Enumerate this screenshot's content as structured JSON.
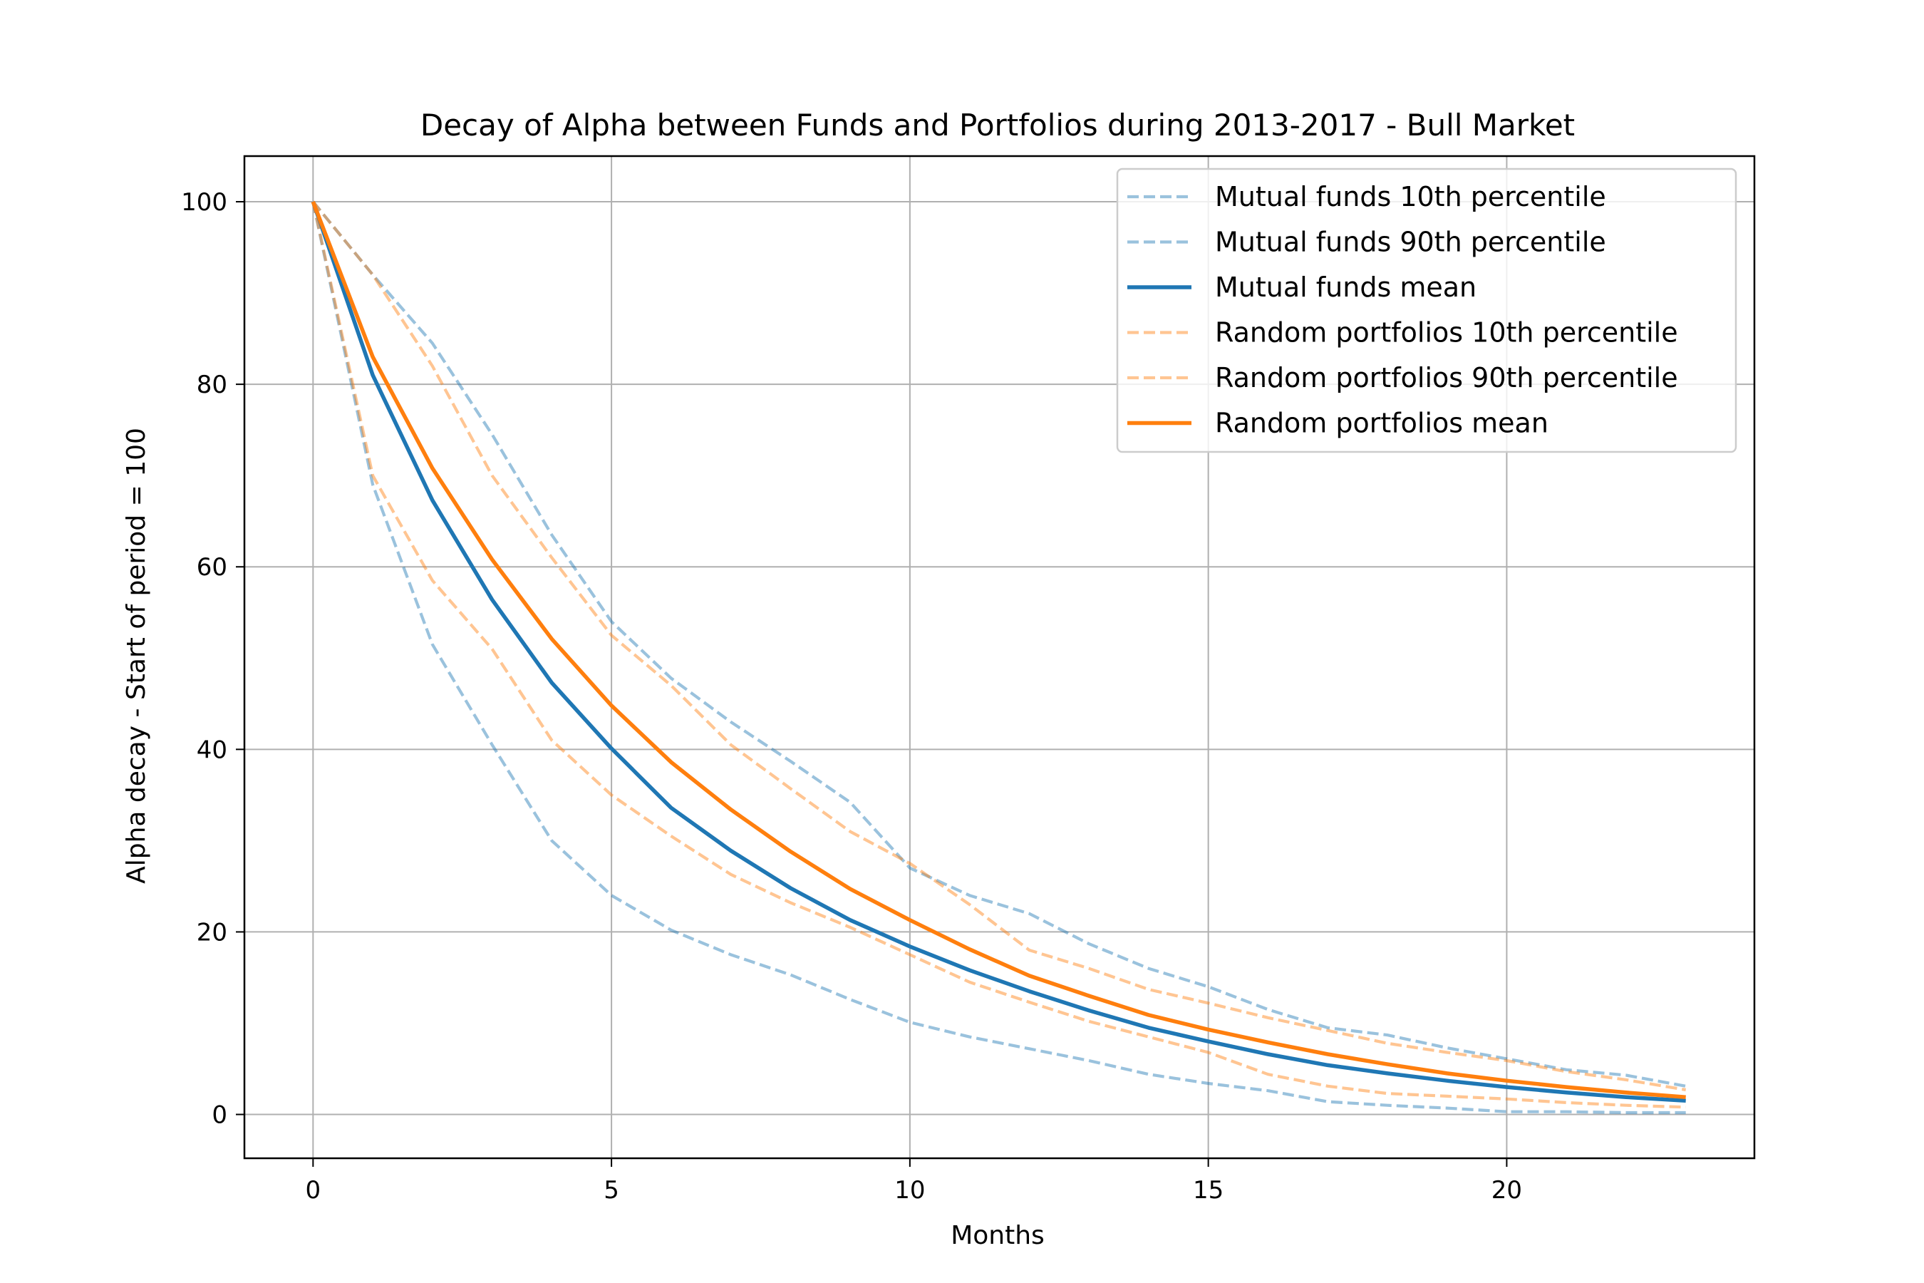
{
  "chart_data": {
    "type": "line",
    "title": "Decay of Alpha between Funds and Portfolios during 2013-2017 - Bull Market",
    "xlabel": "Months",
    "ylabel": "Alpha decay - Start of period = 100",
    "xlim": [
      -1.15,
      24.15
    ],
    "ylim": [
      -4.8,
      105
    ],
    "xticks": [
      0,
      5,
      10,
      15,
      20
    ],
    "yticks": [
      0,
      20,
      40,
      60,
      80,
      100
    ],
    "grid": true,
    "legend_position": "top-right",
    "x": [
      0,
      1,
      2,
      3,
      4,
      5,
      6,
      7,
      8,
      9,
      10,
      11,
      12,
      13,
      14,
      15,
      16,
      17,
      18,
      19,
      20,
      21,
      22,
      23
    ],
    "series": [
      {
        "name": "Mutual funds 10th percentile",
        "color": "#1f77b4",
        "style": "dashed",
        "alpha": 0.45,
        "values": [
          100,
          69,
          51.5,
          40.5,
          30,
          24,
          20.2,
          17.5,
          15.3,
          12.6,
          10.1,
          8.5,
          7.2,
          5.9,
          4.4,
          3.4,
          2.6,
          1.4,
          1,
          0.7,
          0.3,
          0.3,
          0.2,
          0.2
        ]
      },
      {
        "name": "Mutual funds 90th percentile",
        "color": "#1f77b4",
        "style": "dashed",
        "alpha": 0.45,
        "values": [
          100,
          92,
          84.5,
          74.5,
          63.5,
          54,
          47.8,
          43,
          38.7,
          34.2,
          27,
          24,
          22,
          18.7,
          16,
          14,
          11.5,
          9.5,
          8.7,
          7.3,
          6.1,
          4.9,
          4.3,
          3.1
        ]
      },
      {
        "name": "Mutual funds mean",
        "color": "#1f77b4",
        "style": "solid",
        "alpha": 1,
        "values": [
          100,
          81,
          67.3,
          56.4,
          47.3,
          40.1,
          33.6,
          28.9,
          24.8,
          21.3,
          18.4,
          15.8,
          13.5,
          11.4,
          9.5,
          8,
          6.6,
          5.4,
          4.5,
          3.7,
          3,
          2.4,
          1.9,
          1.5
        ]
      },
      {
        "name": "Random portfolios 10th percentile",
        "color": "#ff7f0e",
        "style": "dashed",
        "alpha": 0.45,
        "values": [
          100,
          70,
          58.5,
          51,
          41,
          35,
          30.5,
          26.3,
          23.2,
          20.5,
          17.5,
          14.5,
          12.3,
          10.2,
          8.5,
          6.8,
          4.4,
          3.1,
          2.3,
          2,
          1.7,
          1.3,
          1,
          0.8
        ]
      },
      {
        "name": "Random portfolios 90th percentile",
        "color": "#ff7f0e",
        "style": "dashed",
        "alpha": 0.45,
        "values": [
          100,
          92,
          82,
          70,
          61,
          52.5,
          47,
          40.5,
          35.7,
          31,
          27.5,
          23,
          18,
          16,
          13.7,
          12.2,
          10.6,
          9.2,
          7.8,
          6.8,
          5.9,
          4.7,
          3.8,
          2.7
        ]
      },
      {
        "name": "Random portfolios mean",
        "color": "#ff7f0e",
        "style": "solid",
        "alpha": 1,
        "values": [
          100,
          83,
          70.8,
          60.8,
          52.1,
          44.8,
          38.6,
          33.4,
          28.8,
          24.7,
          21.3,
          18.1,
          15.2,
          13,
          10.9,
          9.3,
          7.9,
          6.6,
          5.5,
          4.5,
          3.7,
          3,
          2.4,
          1.9
        ]
      }
    ]
  }
}
